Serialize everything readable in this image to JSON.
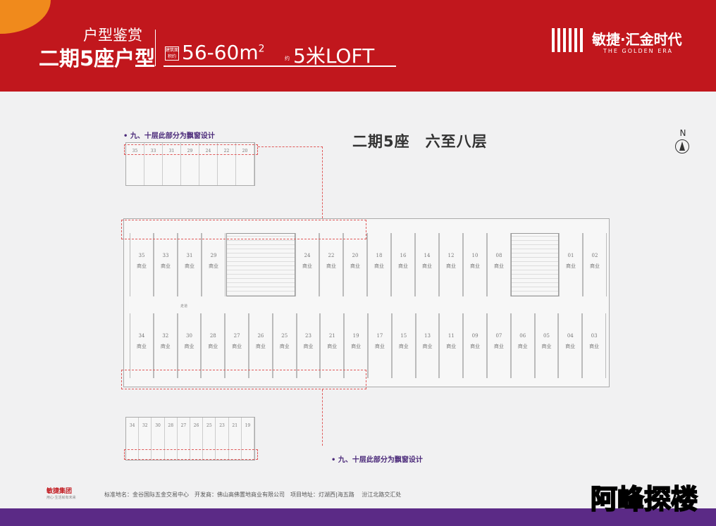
{
  "header": {
    "subtitle": "户型鉴赏",
    "title": "二期5座户型",
    "area_label": "建筑面积约",
    "area": "56-60m",
    "area_sup": "2",
    "approx": "约",
    "loft": "5米LOFT",
    "brand": "敏捷·汇金时代",
    "brand_en": "THE GOLDEN ERA",
    "accent": "#c1171d"
  },
  "plan": {
    "floor_title": "二期5座　六至八层",
    "north": "N",
    "note_top": "• 九、十层此部分为飘窗设计",
    "note_bottom": "• 九、十层此部分为飘窗设计",
    "room_type": "商业",
    "corridor": "走道",
    "top_units": [
      "35",
      "33",
      "31",
      "29",
      "24",
      "22",
      "20",
      "18",
      "16",
      "14",
      "12",
      "10",
      "08",
      "01",
      "02"
    ],
    "bottom_units": [
      "34",
      "32",
      "30",
      "28",
      "27",
      "26",
      "25",
      "23",
      "21",
      "19",
      "17",
      "15",
      "13",
      "11",
      "09",
      "07",
      "06",
      "05",
      "04",
      "03"
    ],
    "mini_top_units": [
      "35",
      "33",
      "31",
      "29",
      "24",
      "22",
      "20"
    ],
    "mini_bottom_units": [
      "34",
      "32",
      "30",
      "28",
      "27",
      "26",
      "25",
      "23",
      "21",
      "19"
    ]
  },
  "footer": {
    "group": "敏捷集团",
    "group_slogan": "用心·生活就有未来",
    "info": "标准地名：金谷国际五金交易中心　开发商：佛山高佛置地商业有限公司　项目地址：灯湖西|海五路 汾江北路交汇处",
    "watermark": "阿峰探楼"
  }
}
